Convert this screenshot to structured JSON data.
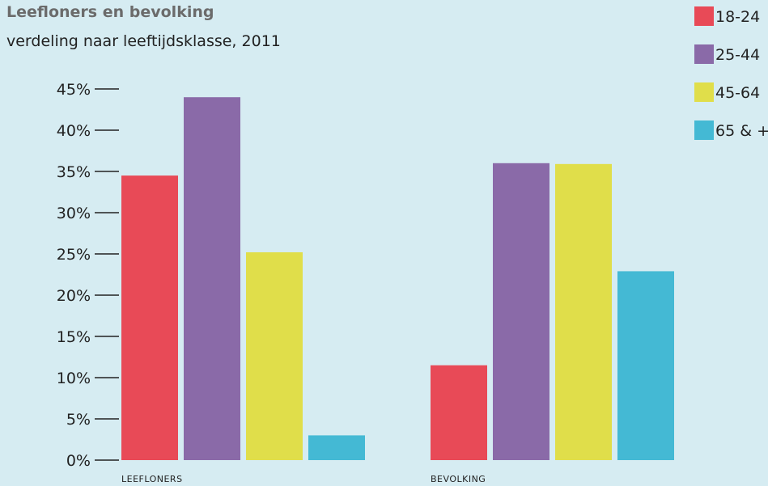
{
  "title": "Leefloners en bevolking",
  "subtitle": "verdeling naar leeftijdsklasse, 2011",
  "chart_data": {
    "type": "bar",
    "categories": [
      "LEEFLONERS",
      "BEVOLKING"
    ],
    "series": [
      {
        "name": "18-24",
        "color": "#e84a57",
        "values": [
          34.5,
          11.5
        ]
      },
      {
        "name": "25-44",
        "color": "#8a6aa8",
        "values": [
          44,
          36
        ]
      },
      {
        "name": "45-64",
        "color": "#e0de4a",
        "values": [
          25.2,
          35.9
        ]
      },
      {
        "name": "65 & +",
        "color": "#44b9d4",
        "values": [
          3,
          22.9
        ]
      }
    ],
    "yticks": [
      "0%",
      "5%",
      "10%",
      "15%",
      "20%",
      "25%",
      "30%",
      "35%",
      "40%",
      "45%"
    ],
    "ylim": [
      0,
      45
    ],
    "grid": false,
    "legend": "top-right"
  }
}
